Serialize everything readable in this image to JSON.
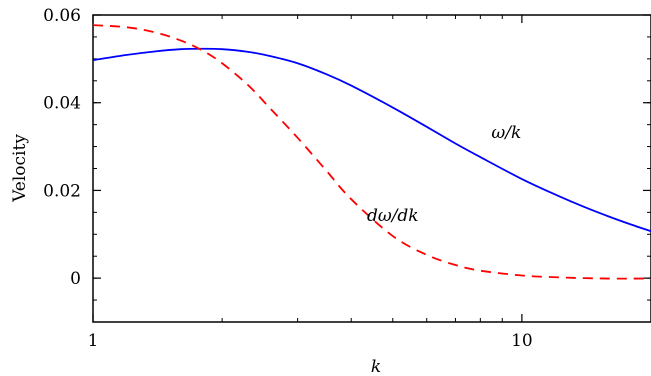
{
  "chart_data": {
    "type": "line",
    "xlabel": "k",
    "ylabel": "Velocity",
    "xscale": "log",
    "xlim": [
      1,
      20
    ],
    "ylim": [
      -0.01,
      0.06
    ],
    "x_ticks": [
      1,
      10
    ],
    "x_tick_labels": [
      "1",
      "10"
    ],
    "y_ticks": [
      0,
      0.02,
      0.04,
      0.06
    ],
    "y_tick_labels": [
      "0",
      "0.02",
      "0.04",
      "0.06"
    ],
    "grid": false,
    "annotations": [
      {
        "text": "ω/k",
        "x": 9.2,
        "y": 0.032
      },
      {
        "text": "dω/dk",
        "x": 5.0,
        "y": 0.013
      }
    ],
    "series": [
      {
        "color": "#0000ff",
        "style": "solid",
        "x": [
          1,
          1.2,
          1.4,
          1.6,
          1.8,
          2.0,
          2.3,
          2.6,
          3.0,
          3.5,
          4.0,
          5.0,
          6.0,
          7.0,
          8.0,
          10,
          12,
          14,
          16,
          18,
          20
        ],
        "y": [
          0.0497,
          0.0509,
          0.0517,
          0.0522,
          0.0523,
          0.0522,
          0.0516,
          0.0506,
          0.049,
          0.0465,
          0.0439,
          0.0389,
          0.0345,
          0.0307,
          0.0276,
          0.0226,
          0.019,
          0.0162,
          0.014,
          0.0122,
          0.0107
        ]
      },
      {
        "color": "#ff0000",
        "style": "dashed",
        "x": [
          1,
          1.2,
          1.4,
          1.6,
          1.8,
          2.0,
          2.3,
          2.6,
          3.0,
          3.5,
          4.0,
          5.0,
          6.0,
          7.0,
          8.0,
          10,
          12,
          14,
          16,
          18,
          20
        ],
        "y": [
          0.0577,
          0.0572,
          0.056,
          0.0542,
          0.0519,
          0.049,
          0.044,
          0.0385,
          0.032,
          0.0245,
          0.018,
          0.0096,
          0.0053,
          0.003,
          0.0017,
          0.0006,
          0.0002,
          0.0,
          -0.0001,
          -0.0001,
          -0.0001
        ]
      }
    ]
  }
}
